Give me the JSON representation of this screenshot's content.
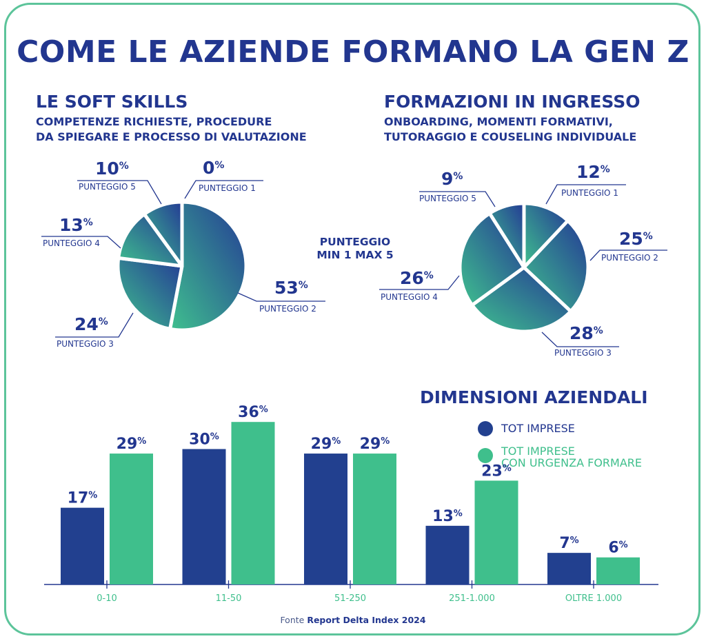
{
  "title": "COME LE AZIENDE FORMANO LA GEN Z",
  "center_note": [
    "PUNTEGGIO",
    "MIN 1 MAX 5"
  ],
  "source": {
    "prefix": "Fonte",
    "name": "Report Delta Index 2024"
  },
  "colors": {
    "navy": "#22368f",
    "green": "#3fbf8c",
    "border": "#5cc49a",
    "pie_start": "#243b95",
    "pie_end": "#3fc08e"
  },
  "chart_data": [
    {
      "type": "pie",
      "title": "LE SOFT SKILLS",
      "subtitle": [
        "COMPETENZE RICHIESTE, PROCEDURE",
        "DA SPIEGARE E PROCESSO DI VALUTAZIONE"
      ],
      "slices": [
        {
          "label": "PUNTEGGIO 1",
          "value": 0,
          "display": "0"
        },
        {
          "label": "PUNTEGGIO 2",
          "value": 53,
          "display": "53"
        },
        {
          "label": "PUNTEGGIO 3",
          "value": 24,
          "display": "24"
        },
        {
          "label": "PUNTEGGIO 4",
          "value": 13,
          "display": "13"
        },
        {
          "label": "PUNTEGGIO 5",
          "value": 10,
          "display": "10"
        }
      ],
      "unit": "%"
    },
    {
      "type": "pie",
      "title": "FORMAZIONI IN INGRESSO",
      "subtitle": [
        "ONBOARDING, MOMENTI FORMATIVI,",
        "TUTORAGGIO E COUSELING INDIVIDUALE"
      ],
      "slices": [
        {
          "label": "PUNTEGGIO 1",
          "value": 12,
          "display": "12"
        },
        {
          "label": "PUNTEGGIO 2",
          "value": 25,
          "display": "25"
        },
        {
          "label": "PUNTEGGIO 3",
          "value": 28,
          "display": "28"
        },
        {
          "label": "PUNTEGGIO 4",
          "value": 26,
          "display": "26"
        },
        {
          "label": "PUNTEGGIO 5",
          "value": 9,
          "display": "9"
        }
      ],
      "unit": "%"
    },
    {
      "type": "bar",
      "title": "DIMENSIONI AZIENDALI",
      "categories": [
        "0-10",
        "11-50",
        "51-250",
        "251-1.000",
        "OLTRE 1.000"
      ],
      "series": [
        {
          "name": "TOT IMPRESE",
          "values": [
            17,
            30,
            29,
            13,
            7
          ],
          "color": "#22408f"
        },
        {
          "name": "TOT IMPRESE CON URGENZA FORMARE",
          "values": [
            29,
            36,
            29,
            23,
            6
          ],
          "color": "#3fbf8c"
        }
      ],
      "legend_lines": [
        [
          "TOT IMPRESE"
        ],
        [
          "TOT IMPRESE",
          "CON URGENZA FORMARE"
        ]
      ],
      "unit": "%",
      "ylim": [
        0,
        40
      ],
      "grid": false,
      "legend_position": "top-right"
    }
  ]
}
